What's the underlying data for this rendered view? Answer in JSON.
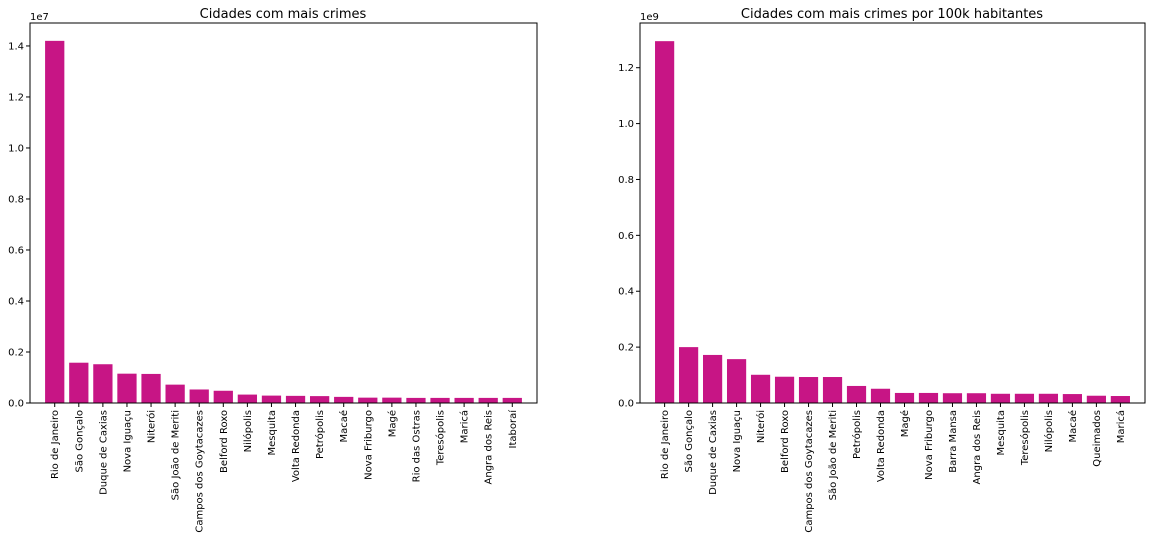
{
  "chart_data": [
    {
      "type": "bar",
      "title": "Cidades com mais crimes",
      "xlabel": "",
      "ylabel": "",
      "ylim": [
        0,
        14900000.0
      ],
      "y_scale_label": "1e7",
      "y_ticks": [
        0,
        2000000,
        4000000,
        6000000,
        8000000,
        10000000,
        12000000,
        14000000
      ],
      "y_tick_labels": [
        "0.0",
        "0.2",
        "0.4",
        "0.6",
        "0.8",
        "1.0",
        "1.2",
        "1.4"
      ],
      "grid": false,
      "bar_color": "#c71585",
      "categories": [
        "Rio de Janeiro",
        "São Gonçalo",
        "Duque de Caxias",
        "Nova Iguaçu",
        "Niterói",
        "São João de Meriti",
        "Campos dos Goytacazes",
        "Belford Roxo",
        "Nilópolis",
        "Mesquita",
        "Volta Redonda",
        "Petrópolis",
        "Macaé",
        "Nova Friburgo",
        "Magé",
        "Rio das Ostras",
        "Teresópolis",
        "Maricá",
        "Angra dos Reis",
        "Itaboraí"
      ],
      "values": [
        14200000,
        1580000,
        1520000,
        1150000,
        1140000,
        720000,
        530000,
        480000,
        330000,
        290000,
        280000,
        270000,
        240000,
        210000,
        210000,
        200000,
        200000,
        200000,
        200000,
        200000
      ]
    },
    {
      "type": "bar",
      "title": "Cidades com mais crimes por 100k habitantes",
      "xlabel": "",
      "ylabel": "",
      "ylim": [
        0,
        1360000000.0
      ],
      "y_scale_label": "1e9",
      "y_ticks": [
        0,
        200000000,
        400000000,
        600000000,
        800000000,
        1000000000,
        1200000000
      ],
      "y_tick_labels": [
        "0.0",
        "0.2",
        "0.4",
        "0.6",
        "0.8",
        "1.0",
        "1.2"
      ],
      "grid": false,
      "bar_color": "#c71585",
      "categories": [
        "Rio de Janeiro",
        "São Gonçalo",
        "Duque de Caxias",
        "Nova Iguaçu",
        "Niterói",
        "Belford Roxo",
        "Campos dos Goytacazes",
        "São João de Meriti",
        "Petrópolis",
        "Volta Redonda",
        "Magé",
        "Nova Friburgo",
        "Barra Mansa",
        "Angra dos Reis",
        "Mesquita",
        "Teresópolis",
        "Nilópolis",
        "Macaé",
        "Queimados",
        "Maricá"
      ],
      "values": [
        1295000000,
        200000000,
        172000000,
        157000000,
        101000000,
        94000000,
        93000000,
        93000000,
        61000000,
        51000000,
        36000000,
        36000000,
        35000000,
        35000000,
        33000000,
        33000000,
        33000000,
        32000000,
        26000000,
        25000000
      ]
    }
  ]
}
